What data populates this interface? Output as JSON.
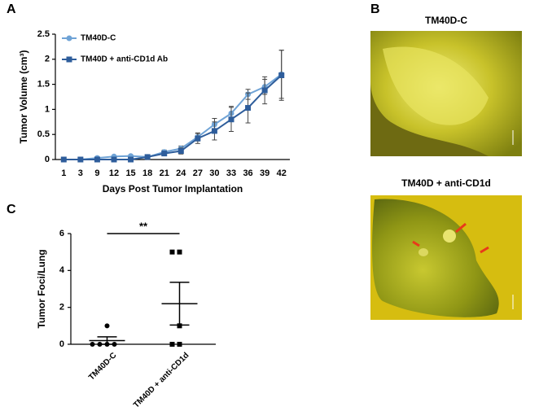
{
  "panels": {
    "a": "A",
    "b": "B",
    "c": "C"
  },
  "images": [
    {
      "title": "TM40D-C"
    },
    {
      "title": "TM40D + anti-CD1d"
    }
  ],
  "chart_data": [
    {
      "type": "line",
      "x_label": "Days Post Tumor Implantation",
      "y_label": "Tumor Volume (cm³)",
      "categories": [
        "1",
        "3",
        "9",
        "12",
        "15",
        "18",
        "21",
        "24",
        "27",
        "30",
        "33",
        "36",
        "39",
        "42"
      ],
      "ylim": [
        0,
        2.5
      ],
      "yticks": [
        0,
        0.5,
        1,
        1.5,
        2,
        2.5
      ],
      "legend": "upper left",
      "series": [
        {
          "name": "TM40D-C",
          "color": "#6fa3d6",
          "marker": "circle",
          "values": [
            0,
            0,
            0.03,
            0.06,
            0.07,
            0.05,
            0.15,
            0.22,
            0.45,
            0.7,
            0.92,
            1.3,
            1.45,
            1.7
          ],
          "errors": [
            0,
            0,
            0.01,
            0.02,
            0.02,
            0.02,
            0.04,
            0.05,
            0.08,
            0.12,
            0.14,
            0.1,
            0.15,
            0.48
          ]
        },
        {
          "name": "TM40D + anti-CD1d Ab",
          "color": "#2e5d9b",
          "marker": "square",
          "values": [
            0,
            0,
            0,
            0,
            0,
            0.05,
            0.12,
            0.17,
            0.42,
            0.57,
            0.8,
            1.03,
            1.38,
            1.68
          ],
          "errors": [
            0,
            0,
            0,
            0,
            0,
            0.02,
            0.04,
            0.06,
            0.1,
            0.18,
            0.24,
            0.3,
            0.27,
            0.5
          ]
        }
      ]
    },
    {
      "type": "dot",
      "y_label": "Tumor Foci/Lung",
      "categories": [
        "TM40D-C",
        "TM40D + anti-CD1d"
      ],
      "ylim": [
        0,
        6
      ],
      "yticks": [
        0,
        2,
        4,
        6
      ],
      "annotation": "**",
      "groups": [
        {
          "marker": "circle",
          "values": [
            0,
            0,
            0,
            0,
            1
          ],
          "mean": 0.2,
          "sem": 0.2
        },
        {
          "marker": "square",
          "values": [
            0,
            0,
            1,
            5,
            5
          ],
          "mean": 2.2,
          "sem": 1.16
        }
      ]
    }
  ]
}
